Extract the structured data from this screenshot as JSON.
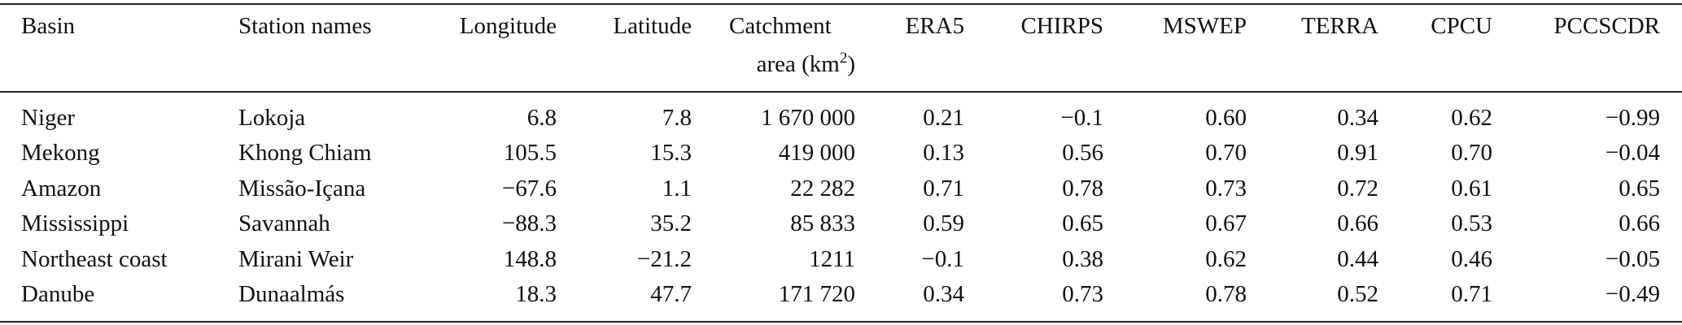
{
  "table": {
    "header": [
      "Basin",
      "Station names",
      "Longitude",
      "Latitude",
      {
        "line1": "Catchment",
        "line2": "area (km",
        "sup": "2",
        "close": ")"
      },
      "ERA5",
      "CHIRPS",
      "MSWEP",
      "TERRA",
      "CPCU",
      "PCCSCDR"
    ],
    "rows": [
      [
        "Niger",
        "Lokoja",
        "6.8",
        "7.8",
        "1 670 000",
        "0.21",
        "−0.1",
        "0.60",
        "0.34",
        "0.62",
        "−0.99"
      ],
      [
        "Mekong",
        "Khong Chiam",
        "105.5",
        "15.3",
        "419 000",
        "0.13",
        "0.56",
        "0.70",
        "0.91",
        "0.70",
        "−0.04"
      ],
      [
        "Amazon",
        "Missão-Içana",
        "−67.6",
        "1.1",
        "22 282",
        "0.71",
        "0.78",
        "0.73",
        "0.72",
        "0.61",
        "0.65"
      ],
      [
        "Mississippi",
        "Savannah",
        "−88.3",
        "35.2",
        "85 833",
        "0.59",
        "0.65",
        "0.67",
        "0.66",
        "0.53",
        "0.66"
      ],
      [
        "Northeast coast",
        "Mirani Weir",
        "148.8",
        "−21.2",
        "1211",
        "−0.1",
        "0.38",
        "0.62",
        "0.44",
        "0.46",
        "−0.05"
      ],
      [
        "Danube",
        "Dunaalmás",
        "18.3",
        "47.7",
        "171 720",
        "0.34",
        "0.73",
        "0.78",
        "0.52",
        "0.71",
        "−0.49"
      ]
    ]
  }
}
